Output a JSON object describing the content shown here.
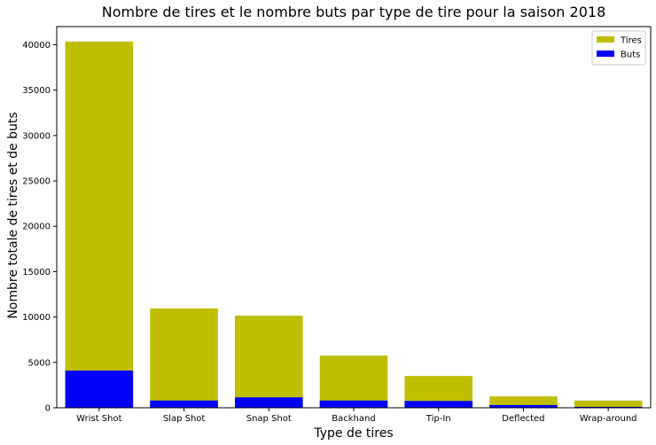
{
  "chart_data": {
    "type": "bar",
    "stacked": false,
    "title": "Nombre de tires et le nombre buts par type de tire pour la saison 2018",
    "xlabel": "Type de tires",
    "ylabel": "Nombre totale de tires et de buts",
    "categories": [
      "Wrist Shot",
      "Slap Shot",
      "Snap Shot",
      "Backhand",
      "Tip-In",
      "Deflected",
      "Wrap-around"
    ],
    "series": [
      {
        "name": "Tires",
        "color": "#bfbf00",
        "values": [
          40350,
          10950,
          10150,
          5750,
          3500,
          1250,
          800
        ]
      },
      {
        "name": "Buts",
        "color": "#0000ff",
        "values": [
          4100,
          800,
          1150,
          800,
          750,
          300,
          100
        ]
      }
    ],
    "ylim": [
      0,
      42000
    ],
    "yticks": [
      0,
      5000,
      10000,
      15000,
      20000,
      25000,
      30000,
      35000,
      40000
    ],
    "grid": false,
    "legend_position": "top-right"
  }
}
